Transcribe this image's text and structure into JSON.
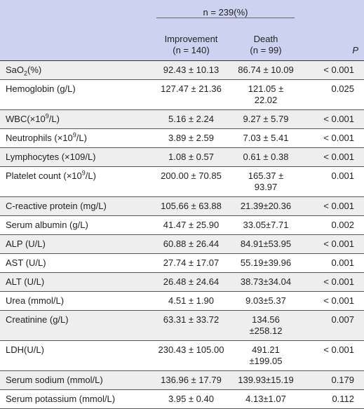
{
  "table": {
    "group_header": "n = 239(%)",
    "columns": [
      {
        "name": "Improvement",
        "n": "(n = 140)"
      },
      {
        "name": "Death",
        "n": "(n = 99)"
      },
      {
        "name": "P"
      }
    ],
    "rows": [
      {
        "label": [
          {
            "text": "SaO"
          },
          {
            "sub": "2"
          },
          {
            "text": "(%)"
          }
        ],
        "cells": [
          "92.43 ± 10.13",
          "86.74 ± 10.09",
          "< 0.001"
        ]
      },
      {
        "label": [
          {
            "text": "Hemoglobin (g/L)"
          }
        ],
        "cells": [
          "127.47 ± 21.36",
          "121.05 ± 22.02",
          "0.025"
        ]
      },
      {
        "label": [
          {
            "text": "WBC(×10"
          },
          {
            "sup": "9"
          },
          {
            "text": "/L)"
          }
        ],
        "cells": [
          "5.16 ± 2.24",
          "9.27 ± 5.79",
          "< 0.001"
        ]
      },
      {
        "label": [
          {
            "text": "Neutrophils (×10"
          },
          {
            "sup": "9"
          },
          {
            "text": "/L)"
          }
        ],
        "cells": [
          "3.89 ± 2.59",
          "7.03 ± 5.41",
          "< 0.001"
        ]
      },
      {
        "label": [
          {
            "text": "Lymphocytes (×109/L)"
          }
        ],
        "cells": [
          "1.08 ± 0.57",
          "0.61 ± 0.38",
          "< 0.001"
        ]
      },
      {
        "label": [
          {
            "text": "Platelet count (×10"
          },
          {
            "sup": "9"
          },
          {
            "text": "/L)"
          }
        ],
        "cells": [
          "200.00 ± 70.85",
          "165.37 ± 93.97",
          "0.001"
        ]
      },
      {
        "label": [
          {
            "text": "C-reactive protein (mg/L)"
          }
        ],
        "cells": [
          "105.66 ± 63.88",
          "21.39±20.36",
          "< 0.001"
        ]
      },
      {
        "label": [
          {
            "text": "Serum albumin (g/L)"
          }
        ],
        "cells": [
          "41.47 ± 25.90",
          "33.05±7.71",
          "0.002"
        ]
      },
      {
        "label": [
          {
            "text": "ALP (U/L)"
          }
        ],
        "cells": [
          "60.88 ± 26.44",
          "84.91±53.95",
          "< 0.001"
        ]
      },
      {
        "label": [
          {
            "text": "AST (U/L)"
          }
        ],
        "cells": [
          "27.74 ± 17.07",
          "55.19±39.96",
          "0.001"
        ]
      },
      {
        "label": [
          {
            "text": "ALT (U/L)"
          }
        ],
        "cells": [
          "26.48 ± 24.64",
          "38.73±34.04",
          "< 0.001"
        ]
      },
      {
        "label": [
          {
            "text": "Urea (mmol/L)"
          }
        ],
        "cells": [
          "4.51 ± 1.90",
          "9.03±5.37",
          "< 0.001"
        ]
      },
      {
        "label": [
          {
            "text": "Creatinine (g/L)"
          }
        ],
        "cells": [
          "63.31 ± 33.72",
          "134.56 ±258.12",
          "0.007"
        ]
      },
      {
        "label": [
          {
            "text": "LDH(U/L)"
          }
        ],
        "cells": [
          "230.43 ± 105.00",
          "491.21 ±199.05",
          "< 0.001"
        ]
      },
      {
        "label": [
          {
            "text": "Serum sodium (mmol/L)"
          }
        ],
        "cells": [
          "136.96 ± 17.79",
          "139.93±15.19",
          "0.179"
        ]
      },
      {
        "label": [
          {
            "text": "Serum potassium (mmol/L)"
          }
        ],
        "cells": [
          "3.95 ± 0.40",
          "4.13±1.07",
          "0.112"
        ]
      }
    ]
  }
}
